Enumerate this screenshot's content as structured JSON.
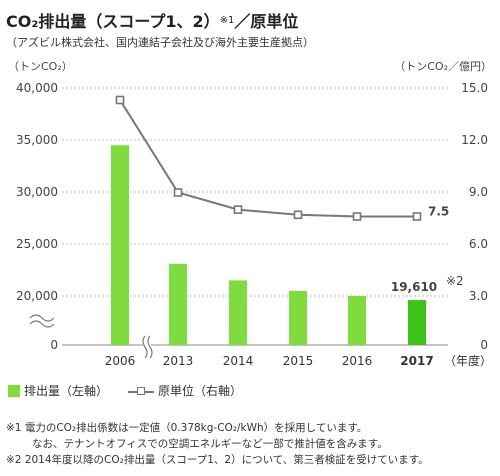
{
  "title": {
    "main": "CO₂排出量（スコープ1、2）",
    "sup": "※1",
    "tail": "／原単位"
  },
  "subtitle": "（アズビル株式会社、国内連結子会社及び海外主要生産拠点）",
  "legend": {
    "bar": "排出量（左軸）",
    "line": "原単位（右軸）"
  },
  "notes": [
    "※1 電力のCO₂排出係数は一定値（0.378kg-CO₂/kWh）を採用しています。",
    "なお、テナントオフィスでの空調エネルギーなど一部で推計値を含みます。",
    "※2 2014年度以降のCO₂排出量（スコープ1、2）について、第三者検証を受けています。"
  ],
  "colors": {
    "bar": "#7fdc3f",
    "bar_highlight": "#3dc217",
    "line": "#777777",
    "grid": "#bbbbbb"
  },
  "chart_data": {
    "type": "bar",
    "categories": [
      "2006",
      "2013",
      "2014",
      "2015",
      "2016",
      "2017"
    ],
    "xlabel": "（年度）",
    "ylabel_left": "（トンCO₂）",
    "ylabel_right": "（トンCO₂／億円）",
    "y_left_ticks": [
      "40,000",
      "35,000",
      "30,000",
      "25,000",
      "20,000",
      "0"
    ],
    "y_right_ticks": [
      "15.0",
      "12.0",
      "9.0",
      "6.0",
      "3.0",
      "0"
    ],
    "axis_break": true,
    "series": [
      {
        "name": "排出量（左軸）",
        "axis": "left",
        "type": "bar",
        "values": [
          34500,
          23100,
          21500,
          20500,
          20000,
          19610
        ]
      },
      {
        "name": "原単位（右軸）",
        "axis": "right",
        "type": "line",
        "values": [
          14.3,
          8.9,
          7.9,
          7.6,
          7.5,
          7.5
        ]
      }
    ],
    "annotations": [
      {
        "category": "2017",
        "series": "排出量（左軸）",
        "text": "19,610",
        "sup": "※2"
      },
      {
        "category": "2017",
        "series": "原単位（右軸）",
        "text": "7.5"
      }
    ]
  }
}
